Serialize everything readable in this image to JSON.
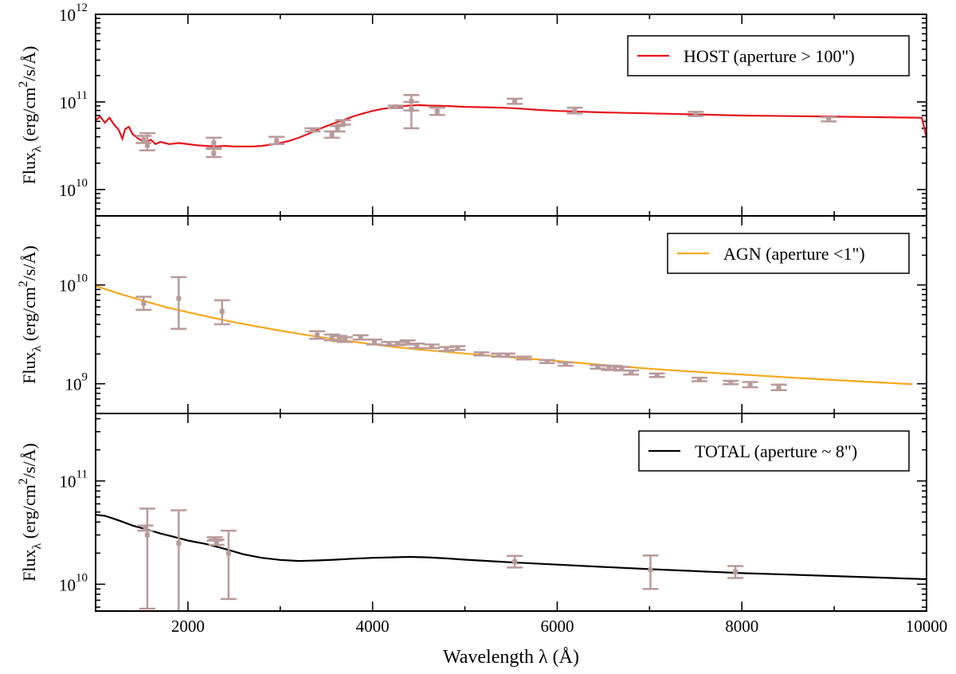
{
  "chart_data": {
    "type": "line",
    "x_range": [
      1000,
      10000
    ],
    "xlabel": "Wavelength λ (Å)",
    "xticks": [
      2000,
      4000,
      6000,
      8000,
      10000
    ],
    "xtick_labels": [
      "2000",
      "4000",
      "6000",
      "8000",
      "10000"
    ],
    "panels": [
      {
        "id": "host",
        "yscale": "log",
        "ylim": [
          5000000000.0,
          1000000000000.0
        ],
        "ylabel_main": "Flux",
        "ylabel_sub": "λ",
        "ylabel_rest": " (erg/cm",
        "ylabel_sup": "2",
        "ylabel_tail": "/s/Å)",
        "yticks": [
          {
            "value": 10000000000.0,
            "base": "10",
            "exp": "10"
          },
          {
            "value": 100000000000.0,
            "base": "10",
            "exp": "11"
          },
          {
            "value": 1000000000000.0,
            "base": "10",
            "exp": "12"
          }
        ],
        "legend": "HOST (aperture > 100\")",
        "color": "#e8141c",
        "model": [
          [
            1000,
            62000000000.0
          ],
          [
            1050,
            68000000000.0
          ],
          [
            1100,
            58000000000.0
          ],
          [
            1150,
            66000000000.0
          ],
          [
            1200,
            55000000000.0
          ],
          [
            1250,
            48000000000.0
          ],
          [
            1290,
            38000000000.0
          ],
          [
            1320,
            49000000000.0
          ],
          [
            1360,
            52000000000.0
          ],
          [
            1400,
            43000000000.0
          ],
          [
            1450,
            39000000000.0
          ],
          [
            1500,
            36000000000.0
          ],
          [
            1550,
            35000000000.0
          ],
          [
            1600,
            37000000000.0
          ],
          [
            1650,
            33000000000.0
          ],
          [
            1700,
            35000000000.0
          ],
          [
            1750,
            34000000000.0
          ],
          [
            1800,
            33000000000.0
          ],
          [
            1900,
            34000000000.0
          ],
          [
            2000,
            33000000000.0
          ],
          [
            2100,
            32000000000.0
          ],
          [
            2200,
            31500000000.0
          ],
          [
            2300,
            31000000000.0
          ],
          [
            2400,
            31500000000.0
          ],
          [
            2500,
            31000000000.0
          ],
          [
            2600,
            31000000000.0
          ],
          [
            2700,
            31000000000.0
          ],
          [
            2800,
            31500000000.0
          ],
          [
            2900,
            32500000000.0
          ],
          [
            3000,
            34000000000.0
          ],
          [
            3100,
            36000000000.0
          ],
          [
            3200,
            39000000000.0
          ],
          [
            3300,
            43000000000.0
          ],
          [
            3400,
            48000000000.0
          ],
          [
            3500,
            53000000000.0
          ],
          [
            3600,
            58000000000.0
          ],
          [
            3700,
            63000000000.0
          ],
          [
            3800,
            69000000000.0
          ],
          [
            3900,
            74000000000.0
          ],
          [
            4000,
            79000000000.0
          ],
          [
            4100,
            83000000000.0
          ],
          [
            4200,
            86000000000.0
          ],
          [
            4300,
            89000000000.0
          ],
          [
            4400,
            91000000000.0
          ],
          [
            4500,
            92000000000.0
          ],
          [
            4600,
            91000000000.0
          ],
          [
            4800,
            90000000000.0
          ],
          [
            5000,
            88000000000.0
          ],
          [
            5200,
            87000000000.0
          ],
          [
            5400,
            86000000000.0
          ],
          [
            5600,
            84000000000.0
          ],
          [
            5800,
            81000000000.0
          ],
          [
            6000,
            79000000000.0
          ],
          [
            6500,
            76000000000.0
          ],
          [
            7000,
            74000000000.0
          ],
          [
            7500,
            72000000000.0
          ],
          [
            8000,
            70000000000.0
          ],
          [
            8500,
            69000000000.0
          ],
          [
            9000,
            68000000000.0
          ],
          [
            9500,
            67000000000.0
          ],
          [
            9950,
            66000000000.0
          ],
          [
            10000,
            39000000000.0
          ]
        ],
        "observations": [
          {
            "x": 1520,
            "y": 37000000000.0,
            "lo": 34000000000.0,
            "hi": 41000000000.0
          },
          {
            "x": 1560,
            "y": 32000000000.0,
            "lo": 28000000000.0,
            "hi": 44000000000.0
          },
          {
            "x": 2280,
            "y": 34000000000.0,
            "lo": 30000000000.0,
            "hi": 39000000000.0
          },
          {
            "x": 2280,
            "y": 26000000000.0,
            "lo": 23500000000.0,
            "hi": 29000000000.0
          },
          {
            "x": 2960,
            "y": 36000000000.0,
            "lo": 33000000000.0,
            "hi": 40000000000.0
          },
          {
            "x": 3350,
            "y": 48000000000.0,
            "lo": 46000000000.0,
            "hi": 50000000000.0
          },
          {
            "x": 3560,
            "y": 42000000000.0,
            "lo": 39000000000.0,
            "hi": 46000000000.0
          },
          {
            "x": 3620,
            "y": 49000000000.0,
            "lo": 46000000000.0,
            "hi": 53000000000.0
          },
          {
            "x": 3680,
            "y": 58000000000.0,
            "lo": 55000000000.0,
            "hi": 62000000000.0
          },
          {
            "x": 4250,
            "y": 88000000000.0,
            "lo": 85000000000.0,
            "hi": 91000000000.0
          },
          {
            "x": 4420,
            "y": 102000000000.0,
            "lo": 80000000000.0,
            "hi": 120000000000.0
          },
          {
            "x": 4420,
            "y": 82000000000.0,
            "lo": 50000000000.0,
            "hi": 100000000000.0
          },
          {
            "x": 4700,
            "y": 78000000000.0,
            "lo": 71000000000.0,
            "hi": 86000000000.0
          },
          {
            "x": 5540,
            "y": 102000000000.0,
            "lo": 95000000000.0,
            "hi": 109000000000.0
          },
          {
            "x": 6190,
            "y": 80000000000.0,
            "lo": 74000000000.0,
            "hi": 86000000000.0
          },
          {
            "x": 7500,
            "y": 73000000000.0,
            "lo": 69000000000.0,
            "hi": 77000000000.0
          },
          {
            "x": 8940,
            "y": 63000000000.0,
            "lo": 60000000000.0,
            "hi": 67000000000.0
          }
        ]
      },
      {
        "id": "agn",
        "yscale": "log",
        "ylim": [
          500000000.0,
          50000000000.0
        ],
        "ylabel_main": "Flux",
        "ylabel_sub": "λ",
        "ylabel_rest": " (erg/cm",
        "ylabel_sup": "2",
        "ylabel_tail": "/s/Å)",
        "yticks": [
          {
            "value": 1000000000.0,
            "base": "10",
            "exp": "9"
          },
          {
            "value": 10000000000.0,
            "base": "10",
            "exp": "10"
          }
        ],
        "legend": "AGN (aperture <1\")",
        "color": "#f7a81b",
        "model": [
          [
            1000,
            9800000000.0
          ],
          [
            1250,
            8200000000.0
          ],
          [
            1500,
            7000000000.0
          ],
          [
            1750,
            6000000000.0
          ],
          [
            2000,
            5300000000.0
          ],
          [
            2250,
            4700000000.0
          ],
          [
            2500,
            4200000000.0
          ],
          [
            2750,
            3800000000.0
          ],
          [
            3000,
            3450000000.0
          ],
          [
            3250,
            3150000000.0
          ],
          [
            3500,
            2900000000.0
          ],
          [
            3750,
            2700000000.0
          ],
          [
            4000,
            2500000000.0
          ],
          [
            4250,
            2350000000.0
          ],
          [
            4500,
            2220000000.0
          ],
          [
            4750,
            2120000000.0
          ],
          [
            5000,
            2020000000.0
          ],
          [
            5500,
            1850000000.0
          ],
          [
            6000,
            1700000000.0
          ],
          [
            6500,
            1550000000.0
          ],
          [
            7000,
            1420000000.0
          ],
          [
            7500,
            1320000000.0
          ],
          [
            8000,
            1240000000.0
          ],
          [
            8500,
            1160000000.0
          ],
          [
            9000,
            1090000000.0
          ],
          [
            9500,
            1030000000.0
          ],
          [
            9850,
            990000000.0
          ]
        ],
        "observations": [
          {
            "x": 1520,
            "y": 6500000000.0,
            "lo": 5600000000.0,
            "hi": 7600000000.0
          },
          {
            "x": 1900,
            "y": 7300000000.0,
            "lo": 3600000000.0,
            "hi": 12000000000.0
          },
          {
            "x": 2370,
            "y": 5400000000.0,
            "lo": 4000000000.0,
            "hi": 7000000000.0
          },
          {
            "x": 3400,
            "y": 3100000000.0,
            "lo": 2850000000.0,
            "hi": 3400000000.0
          },
          {
            "x": 3560,
            "y": 2950000000.0,
            "lo": 2750000000.0,
            "hi": 3150000000.0
          },
          {
            "x": 3640,
            "y": 2850000000.0,
            "lo": 2700000000.0,
            "hi": 3050000000.0
          },
          {
            "x": 3700,
            "y": 2800000000.0,
            "lo": 2650000000.0,
            "hi": 2950000000.0
          },
          {
            "x": 3870,
            "y": 2950000000.0,
            "lo": 2800000000.0,
            "hi": 3100000000.0
          },
          {
            "x": 4020,
            "y": 2650000000.0,
            "lo": 2500000000.0,
            "hi": 2800000000.0
          },
          {
            "x": 4180,
            "y": 2550000000.0,
            "lo": 2450000000.0,
            "hi": 2650000000.0
          },
          {
            "x": 4270,
            "y": 2550000000.0,
            "lo": 2450000000.0,
            "hi": 2650000000.0
          },
          {
            "x": 4380,
            "y": 2600000000.0,
            "lo": 2500000000.0,
            "hi": 2750000000.0
          },
          {
            "x": 4480,
            "y": 2400000000.0,
            "lo": 2300000000.0,
            "hi": 2550000000.0
          },
          {
            "x": 4640,
            "y": 2400000000.0,
            "lo": 2300000000.0,
            "hi": 2500000000.0
          },
          {
            "x": 4800,
            "y": 2250000000.0,
            "lo": 2150000000.0,
            "hi": 2350000000.0
          },
          {
            "x": 4920,
            "y": 2300000000.0,
            "lo": 2200000000.0,
            "hi": 2400000000.0
          },
          {
            "x": 5180,
            "y": 2000000000.0,
            "lo": 1930000000.0,
            "hi": 2080000000.0
          },
          {
            "x": 5370,
            "y": 1950000000.0,
            "lo": 1880000000.0,
            "hi": 2020000000.0
          },
          {
            "x": 5460,
            "y": 1950000000.0,
            "lo": 1880000000.0,
            "hi": 2020000000.0
          },
          {
            "x": 5640,
            "y": 1820000000.0,
            "lo": 1760000000.0,
            "hi": 1880000000.0
          },
          {
            "x": 5890,
            "y": 1680000000.0,
            "lo": 1620000000.0,
            "hi": 1740000000.0
          },
          {
            "x": 6090,
            "y": 1580000000.0,
            "lo": 1520000000.0,
            "hi": 1640000000.0
          },
          {
            "x": 6440,
            "y": 1480000000.0,
            "lo": 1420000000.0,
            "hi": 1540000000.0
          },
          {
            "x": 6560,
            "y": 1450000000.0,
            "lo": 1380000000.0,
            "hi": 1520000000.0
          },
          {
            "x": 6620,
            "y": 1450000000.0,
            "lo": 1380000000.0,
            "hi": 1520000000.0
          },
          {
            "x": 6700,
            "y": 1420000000.0,
            "lo": 1360000000.0,
            "hi": 1480000000.0
          },
          {
            "x": 6800,
            "y": 1300000000.0,
            "lo": 1240000000.0,
            "hi": 1360000000.0
          },
          {
            "x": 7080,
            "y": 1220000000.0,
            "lo": 1170000000.0,
            "hi": 1270000000.0
          },
          {
            "x": 7540,
            "y": 1100000000.0,
            "lo": 1060000000.0,
            "hi": 1150000000.0
          },
          {
            "x": 7880,
            "y": 1030000000.0,
            "lo": 990000000.0,
            "hi": 1070000000.0
          },
          {
            "x": 8090,
            "y": 980000000.0,
            "lo": 920000000.0,
            "hi": 1040000000.0
          },
          {
            "x": 8400,
            "y": 920000000.0,
            "lo": 860000000.0,
            "hi": 980000000.0
          }
        ]
      },
      {
        "id": "total",
        "yscale": "log",
        "ylim": [
          5500000000.0,
          450000000000.0
        ],
        "ylabel_main": "Flux",
        "ylabel_sub": "λ",
        "ylabel_rest": " (erg/cm",
        "ylabel_sup": "2",
        "ylabel_tail": "/s/Å)",
        "yticks": [
          {
            "value": 10000000000.0,
            "base": "10",
            "exp": "10"
          },
          {
            "value": 100000000000.0,
            "base": "10",
            "exp": "11"
          }
        ],
        "legend": "TOTAL (aperture ~ 8\")",
        "color": "#000000",
        "model": [
          [
            1000,
            47000000000.0
          ],
          [
            1100,
            46000000000.0
          ],
          [
            1200,
            43000000000.0
          ],
          [
            1300,
            40000000000.0
          ],
          [
            1400,
            37000000000.0
          ],
          [
            1500,
            35000000000.0
          ],
          [
            1600,
            33000000000.0
          ],
          [
            1700,
            31000000000.0
          ],
          [
            1800,
            29500000000.0
          ],
          [
            1900,
            28000000000.0
          ],
          [
            2000,
            26500000000.0
          ],
          [
            2200,
            24500000000.0
          ],
          [
            2400,
            22000000000.0
          ],
          [
            2600,
            19500000000.0
          ],
          [
            2800,
            18000000000.0
          ],
          [
            3000,
            17200000000.0
          ],
          [
            3200,
            16800000000.0
          ],
          [
            3400,
            17000000000.0
          ],
          [
            3600,
            17300000000.0
          ],
          [
            3800,
            17700000000.0
          ],
          [
            4000,
            18000000000.0
          ],
          [
            4200,
            18200000000.0
          ],
          [
            4400,
            18400000000.0
          ],
          [
            4600,
            18200000000.0
          ],
          [
            4800,
            17800000000.0
          ],
          [
            5000,
            17300000000.0
          ],
          [
            5500,
            16300000000.0
          ],
          [
            6000,
            15500000000.0
          ],
          [
            6500,
            14700000000.0
          ],
          [
            7000,
            14000000000.0
          ],
          [
            7500,
            13400000000.0
          ],
          [
            8000,
            12800000000.0
          ],
          [
            8500,
            12400000000.0
          ],
          [
            9000,
            12000000000.0
          ],
          [
            9500,
            11600000000.0
          ],
          [
            10000,
            11200000000.0
          ]
        ],
        "observations": [
          {
            "x": 1540,
            "y": 35000000000.0,
            "lo": 33000000000.0,
            "hi": 37000000000.0
          },
          {
            "x": 1560,
            "y": 30000000000.0,
            "lo": 5800000000.0,
            "hi": 54000000000.0
          },
          {
            "x": 1900,
            "y": 25000000000.0,
            "lo": 5500000000.0,
            "hi": 52000000000.0
          },
          {
            "x": 2290,
            "y": 27500000000.0,
            "lo": 26500000000.0,
            "hi": 28500000000.0
          },
          {
            "x": 2310,
            "y": 25500000000.0,
            "lo": 24000000000.0,
            "hi": 27000000000.0
          },
          {
            "x": 2440,
            "y": 20000000000.0,
            "lo": 7200000000.0,
            "hi": 33000000000.0
          },
          {
            "x": 5540,
            "y": 16500000000.0,
            "lo": 14500000000.0,
            "hi": 18800000000.0
          },
          {
            "x": 7010,
            "y": 13800000000.0,
            "lo": 9000000000.0,
            "hi": 19000000000.0
          },
          {
            "x": 7930,
            "y": 13200000000.0,
            "lo": 11500000000.0,
            "hi": 15000000000.0
          }
        ]
      }
    ]
  },
  "style": {
    "errorbar_color": "#b99a9a",
    "axis_color": "#000000"
  }
}
